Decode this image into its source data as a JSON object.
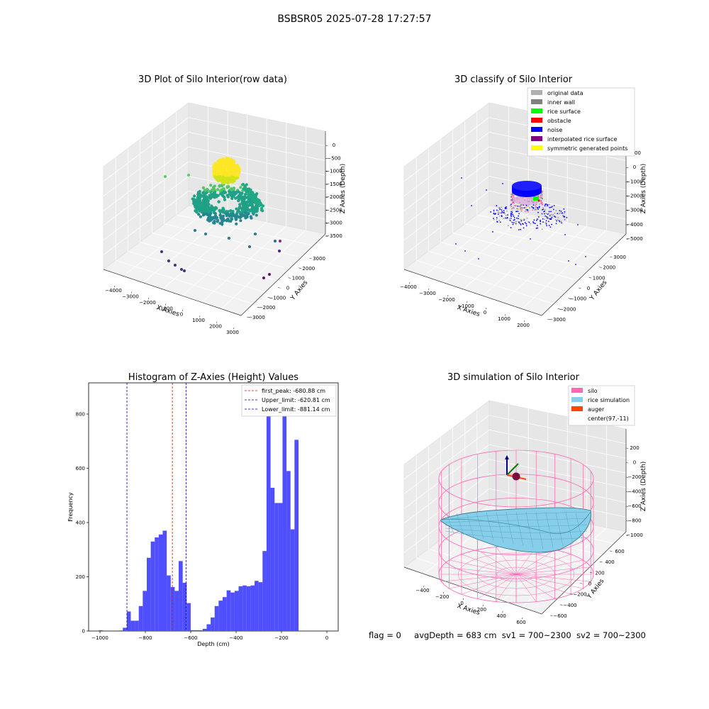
{
  "suptitle": "BSBSR05 2025-07-28 17:27:57",
  "panels": {
    "raw": {
      "title": "3D Plot of Silo Interior(row data)",
      "xlabel": "X Axies",
      "ylabel": "Y Axies",
      "zlabel": "Z Axies (Depth)",
      "xticks": [
        "−4000",
        "−3000",
        "−2000",
        "−1000",
        "0",
        "1000",
        "2000",
        "3000"
      ],
      "yticks": [
        "−3000",
        "−2000",
        "−1000",
        "0",
        "1000",
        "2000",
        "3000"
      ],
      "zticks": [
        "0",
        "−500",
        "−1000",
        "−1500",
        "−2000",
        "−2500",
        "−3000",
        "−3500"
      ]
    },
    "classify": {
      "title": "3D classify of Silo Interior",
      "xlabel": "X Axies",
      "ylabel": "Y Axies",
      "zlabel": "Z Axies (Depth)",
      "xticks": [
        "−4000",
        "−3000",
        "−2000",
        "−1000",
        "0",
        "1000",
        "2000"
      ],
      "yticks": [
        "−3000",
        "−2000",
        "−1000",
        "0",
        "1000",
        "2000",
        "3000"
      ],
      "zticks": [
        "1000",
        "0",
        "−1000",
        "−2000",
        "−3000",
        "−4000",
        "−5000"
      ],
      "legend": [
        {
          "label": "original data",
          "color": "#b0b0b0"
        },
        {
          "label": "inner wall",
          "color": "#808080"
        },
        {
          "label": "rice surface",
          "color": "#00ff00"
        },
        {
          "label": "obstacle",
          "color": "#ff0000"
        },
        {
          "label": "noise",
          "color": "#0000ff"
        },
        {
          "label": "interpolated rice surface",
          "color": "#800080"
        },
        {
          "label": "symmetric generated points",
          "color": "#ffff00"
        }
      ]
    },
    "simulation": {
      "title": "3D simulation of Silo Interior",
      "xlabel": "X Axies",
      "ylabel": "Y Axies",
      "zlabel": "Z Axies (Depth)",
      "xticks": [
        "−400",
        "−200",
        "0",
        "200",
        "400",
        "600"
      ],
      "yticks": [
        "−600",
        "−400",
        "−200",
        "0",
        "200",
        "400",
        "600"
      ],
      "zticks": [
        "200",
        "0",
        "−200",
        "−400",
        "−600",
        "−800",
        "−1000"
      ],
      "legend": [
        {
          "label": "silo",
          "color": "#ff69b4"
        },
        {
          "label": "rice simulation",
          "color": "#87ceeb"
        },
        {
          "label": "auger",
          "color": "#ff4500"
        },
        {
          "label": "center(97,-11)",
          "color": "#ffffff"
        }
      ]
    }
  },
  "status": {
    "flag": "flag = 0",
    "avg_depth": "avgDepth = 683 cm",
    "sv1": "sv1 = 700~2300",
    "sv2": "sv2 = 700~2300"
  },
  "chart_data": {
    "type": "bar",
    "title": "Histogram of Z-Axies (Height) Values",
    "xlabel": "Depth (cm)",
    "ylabel": "Frequency",
    "xlim": [
      -1050,
      50
    ],
    "ylim": [
      0,
      915
    ],
    "xticks": [
      -1000,
      -800,
      -600,
      -400,
      -200,
      0
    ],
    "xtick_labels": [
      "−1000",
      "−800",
      "−600",
      "−400",
      "−200",
      "0"
    ],
    "yticks": [
      0,
      200,
      400,
      600,
      800
    ],
    "bar_color": "#4b4bff",
    "bin_edges_start": -1005,
    "bin_width": 17.6,
    "values": [
      3,
      0,
      0,
      0,
      0,
      2,
      12,
      72,
      38,
      38,
      92,
      148,
      270,
      330,
      345,
      356,
      370,
      205,
      162,
      148,
      258,
      178,
      103,
      3,
      3,
      3,
      8,
      25,
      50,
      92,
      112,
      125,
      150,
      142,
      148,
      165,
      168,
      165,
      168,
      185,
      180,
      295,
      860,
      528,
      472,
      472,
      858,
      590,
      375,
      705
    ],
    "vlines": [
      {
        "label": "first_peak: -680.88 cm",
        "x": -680.88,
        "color": "#ff0000"
      },
      {
        "label": "Upper_limit: -620.81 cm",
        "x": -620.81,
        "color": "#0000aa"
      },
      {
        "label": "Lower_limit: -881.14 cm",
        "x": -881.14,
        "color": "#0000aa"
      }
    ]
  }
}
